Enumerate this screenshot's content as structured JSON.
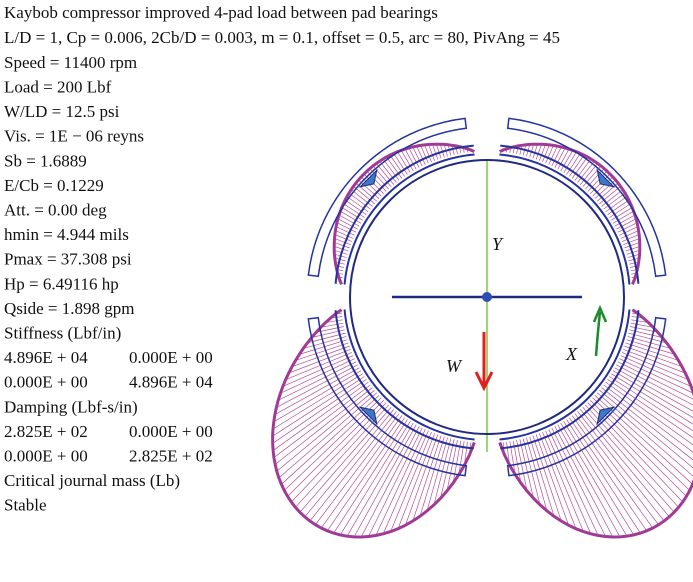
{
  "title": "Kaybob compressor improved 4-pad load between pad bearings",
  "parameters": "L/D = 1, Cp = 0.006, 2Cb/D = 0.003, m = 0.1, offset = 0.5, arc = 80, PivAng = 45",
  "results": [
    "Speed = 11400 rpm",
    "Load = 200 Lbf",
    "W/LD = 12.5 psi",
    "Vis. = 1E − 06 reyns",
    "Sb = 1.6889",
    "E/Cb = 0.1229",
    "Att. = 0.00 deg",
    "hmin = 4.944 mils",
    "Pmax = 37.308 psi",
    "Hp = 6.49116 hp",
    "Qside = 1.898 gpm"
  ],
  "stiffness": {
    "header": "Stiffness (Lbf/in)",
    "rows": [
      [
        "4.896E + 04",
        "0.000E + 00"
      ],
      [
        "0.000E + 00",
        "4.896E + 04"
      ]
    ]
  },
  "damping": {
    "header": "Damping (Lbf-s/in)",
    "rows": [
      [
        "2.825E + 02",
        "0.000E + 00"
      ],
      [
        "0.000E + 00",
        "2.825E + 02"
      ]
    ]
  },
  "critical_mass": "Critical journal mass (Lb)",
  "status": "Stable",
  "diagram": {
    "y_label": "Y",
    "x_label": "X",
    "load_label": "W"
  }
}
